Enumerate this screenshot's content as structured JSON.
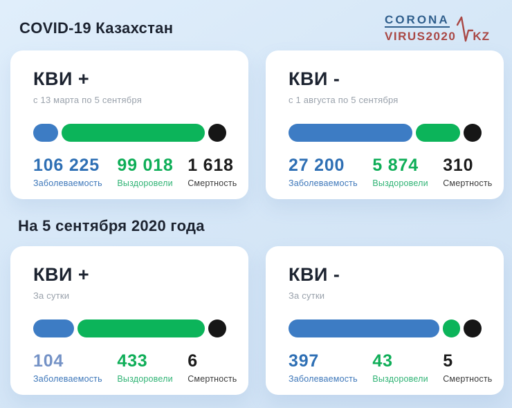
{
  "header": {
    "title": "COVID-19 Казахстан",
    "logo": {
      "line1": "CORONA",
      "line2": "VIRUS2020",
      "suffix": "KZ"
    }
  },
  "section_title": "На 5 сентября 2020 года",
  "colors": {
    "infected_blue": "#3d7cc4",
    "recovered_green": "#0cb45a",
    "deaths_black": "#161616",
    "background": "#d6e7f7",
    "card": "#ffffff",
    "logo_blue": "#2f5e8c",
    "logo_red": "#a94744"
  },
  "cards": [
    {
      "title": "КВИ +",
      "subtitle": "с 13 марта по 5 сентября",
      "infected": {
        "value": "106 225",
        "label": "Заболеваемость"
      },
      "recovered": {
        "value": "99 018",
        "label": "Выздоровели"
      },
      "deaths": {
        "value": "1 618",
        "label": "Смертность"
      },
      "bar": {
        "infected_pct": 13
      }
    },
    {
      "title": "КВИ -",
      "subtitle": "с 1 августа по 5 сентября",
      "infected": {
        "value": "27 200",
        "label": "Заболеваемость"
      },
      "recovered": {
        "value": "5 874",
        "label": "Выздоровели"
      },
      "deaths": {
        "value": "310",
        "label": "Смертность"
      },
      "bar": {
        "infected_pct": 64
      }
    },
    {
      "title": "КВИ +",
      "subtitle": "За сутки",
      "infected": {
        "value": "104",
        "label": "Заболеваемость"
      },
      "recovered": {
        "value": "433",
        "label": "Выздоровели"
      },
      "deaths": {
        "value": "6",
        "label": "Смертность"
      },
      "bar": {
        "infected_pct": 21
      }
    },
    {
      "title": "КВИ -",
      "subtitle": "За сутки",
      "infected": {
        "value": "397",
        "label": "Заболеваемость"
      },
      "recovered": {
        "value": "43",
        "label": "Выздоровели"
      },
      "deaths": {
        "value": "5",
        "label": "Смертность"
      },
      "bar": {
        "infected_pct": 78
      }
    }
  ]
}
